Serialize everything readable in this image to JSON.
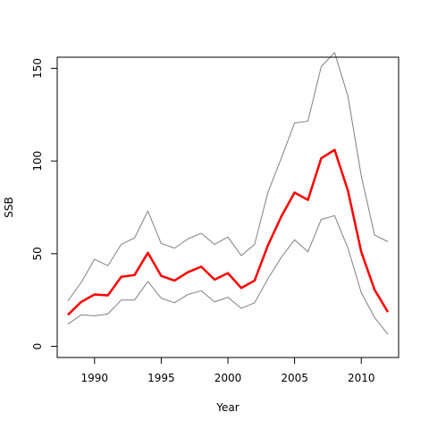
{
  "chart_data": {
    "type": "line",
    "title": "",
    "xlabel": "Year",
    "ylabel": "SSB",
    "xlim": [
      1987.2,
      2012.8
    ],
    "ylim": [
      -6,
      156
    ],
    "x_ticks": [
      1990,
      1995,
      2000,
      2005,
      2010
    ],
    "y_ticks": [
      0,
      50,
      100,
      150
    ],
    "grid": false,
    "legend": "none",
    "x": [
      1988,
      1989,
      1990,
      1991,
      1992,
      1993,
      1994,
      1995,
      1996,
      1997,
      1998,
      1999,
      2000,
      2001,
      2002,
      2003,
      2004,
      2005,
      2006,
      2007,
      2008,
      2009,
      2010,
      2011,
      2012
    ],
    "series": [
      {
        "role": "upper",
        "color": "#808080",
        "values": [
          24.5,
          34.5,
          47,
          43.5,
          55,
          58.5,
          73,
          55.5,
          53,
          58,
          61,
          55,
          59,
          49,
          55,
          83,
          101.5,
          120.5,
          121.5,
          151,
          158.5,
          135,
          92,
          60,
          56.5
        ]
      },
      {
        "role": "estimate",
        "color": "#ff0000",
        "values": [
          17,
          24,
          28,
          27.5,
          37.5,
          38.5,
          50.5,
          38,
          35.5,
          40,
          43,
          36,
          39.5,
          31.5,
          35.5,
          54.5,
          70,
          83,
          79,
          101.5,
          106,
          84,
          51,
          30.5,
          18.5
        ]
      },
      {
        "role": "lower",
        "color": "#808080",
        "values": [
          12,
          17,
          16.5,
          17.5,
          25,
          25,
          35,
          26,
          23.5,
          28,
          30,
          24,
          26.5,
          20.5,
          23.5,
          36.5,
          48,
          57.5,
          51,
          68.5,
          70.5,
          53,
          29,
          15.5,
          6.5
        ]
      }
    ]
  }
}
